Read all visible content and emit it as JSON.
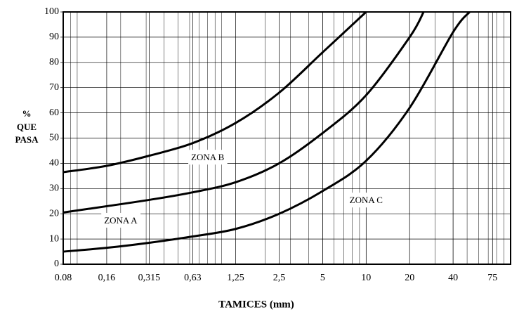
{
  "chart_data": {
    "type": "line",
    "x_label": "TAMICES (mm)",
    "y_label": [
      "%",
      "QUE",
      "PASA"
    ],
    "xscale": "log",
    "xlim": [
      0.08,
      100
    ],
    "ylim": [
      0,
      100
    ],
    "yticks": [
      0,
      10,
      20,
      30,
      40,
      50,
      60,
      70,
      80,
      90,
      100
    ],
    "xticks": [
      0.08,
      {
        "value": 0.16,
        "label": "0,16"
      },
      {
        "value": 0.315,
        "label": "0,315"
      },
      {
        "value": 0.63,
        "label": "0,63"
      },
      {
        "value": 1.25,
        "label": "1,25"
      },
      {
        "value": 2.5,
        "label": "2,5"
      },
      5,
      10,
      20,
      40,
      75
    ],
    "grid": true,
    "series": [
      {
        "color": "#000000",
        "x": [
          0.08,
          0.16,
          0.315,
          0.63,
          1.25,
          2.5,
          5,
          10
        ],
        "values": [
          36.5,
          39,
          43,
          48,
          56,
          68,
          84,
          100
        ]
      },
      {
        "color": "#000000",
        "x": [
          0.08,
          0.16,
          0.315,
          0.63,
          1.25,
          2.5,
          5,
          10,
          20,
          25
        ],
        "values": [
          20.5,
          23,
          25.5,
          28.5,
          32.5,
          40,
          52,
          67,
          90,
          100
        ]
      },
      {
        "color": "#000000",
        "x": [
          0.08,
          0.16,
          0.315,
          0.63,
          1.25,
          2.5,
          5,
          10,
          20,
          40,
          52
        ],
        "values": [
          5,
          6.5,
          8.5,
          11,
          14,
          20,
          29,
          41,
          62,
          92,
          100
        ]
      }
    ],
    "annotations": [
      {
        "text": "ZONA A",
        "x": 0.2,
        "y": 17
      },
      {
        "text": "ZONA B",
        "x": 0.8,
        "y": 42
      },
      {
        "text": "ZONA C",
        "x": 10,
        "y": 25
      }
    ]
  }
}
